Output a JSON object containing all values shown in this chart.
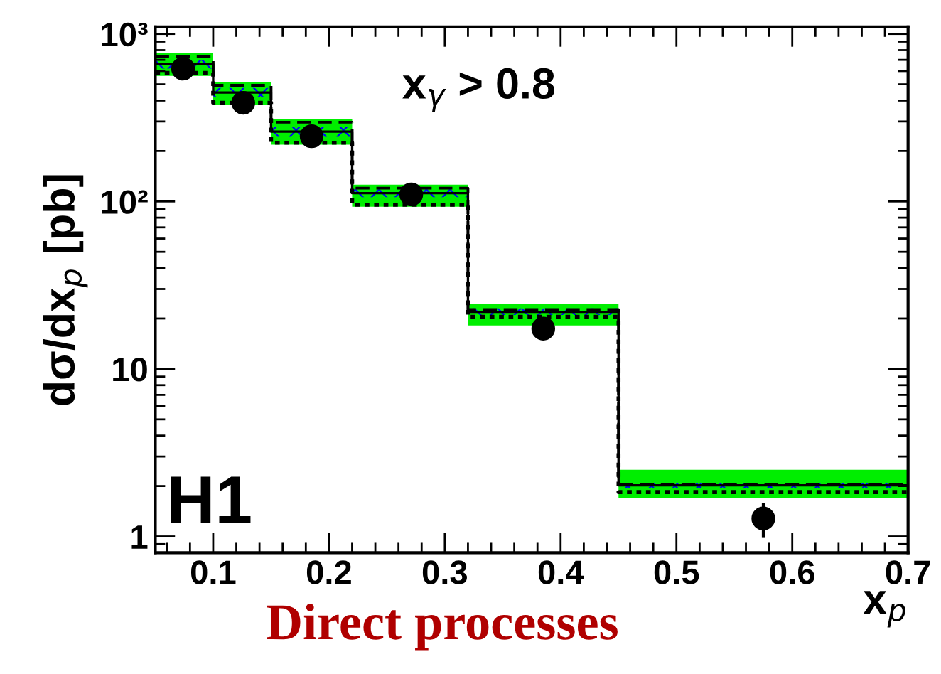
{
  "chart_data": {
    "type": "step",
    "ylabel": "dσ/dx$_{p}$ [pb]",
    "xlabel": "x$_{p}$",
    "annotations": [
      "x$_{γ}$ > 0.8",
      "H1",
      "Direct processes"
    ],
    "log": "y",
    "xlim": [
      0.05,
      0.7
    ],
    "ylim": [
      0.8,
      1100
    ],
    "xticks": [
      0.1,
      0.2,
      0.3,
      0.4,
      0.5,
      0.6,
      0.7
    ],
    "yticks": [
      {
        "value": 1,
        "label": "1"
      },
      {
        "value": 10,
        "label": "10"
      },
      {
        "value": 100,
        "label": "10²"
      },
      {
        "value": 1000,
        "label": "10³"
      }
    ],
    "grid": false,
    "series": [
      {
        "type": "step",
        "color": "#00ee00",
        "x": [
          0.05,
          0.1,
          0.15,
          0.22,
          0.32,
          0.45,
          0.7
        ],
        "values": [
          null,
          null,
          null,
          null,
          null,
          null,
          null
        ],
        "lower": [
          562,
          376,
          218,
          93,
          18.2,
          1.69,
          1.69
        ],
        "upper": [
          767,
          515,
          310,
          126,
          24.5,
          2.5,
          2.5
        ]
      },
      {
        "type": "step",
        "color": "#0000ff",
        "x": [
          0.05,
          0.1,
          0.15,
          0.22,
          0.32,
          0.45,
          0.7
        ],
        "values": [
          null,
          null,
          null,
          null,
          null,
          null,
          null
        ],
        "lower": [
          620,
          420,
          245,
          106,
          21,
          1.95,
          1.95
        ],
        "upper": [
          700,
          475,
          280,
          118,
          23,
          2.08,
          2.08
        ]
      },
      {
        "type": "step",
        "color": "#000000",
        "line_style": "solid",
        "x": [
          0.05,
          0.1,
          0.15,
          0.22,
          0.32,
          0.45,
          0.7
        ],
        "values": [
          660,
          447,
          261,
          112,
          21.9,
          2.02,
          2.02
        ]
      },
      {
        "type": "step",
        "color": "#000000",
        "line_style": "dashed",
        "x": [
          0.05,
          0.1,
          0.15,
          0.22,
          0.32,
          0.45,
          0.7
        ],
        "values": [
          730,
          493,
          297,
          120,
          22.6,
          2.05,
          2.05
        ]
      },
      {
        "type": "step",
        "color": "#000000",
        "line_style": "dotted",
        "x": [
          0.05,
          0.1,
          0.15,
          0.22,
          0.32,
          0.45,
          0.7
        ],
        "values": [
          585,
          388,
          224,
          95.6,
          20.5,
          1.84,
          1.84
        ]
      },
      {
        "type": "scatter",
        "color": "#000000",
        "marker": "circle",
        "x": [
          0.074,
          0.126,
          0.185,
          0.271,
          0.385,
          0.575
        ],
        "values": [
          620,
          388,
          245,
          110,
          17.4,
          1.28
        ],
        "errors": [
          null,
          null,
          null,
          null,
          null,
          0.3
        ]
      }
    ]
  }
}
